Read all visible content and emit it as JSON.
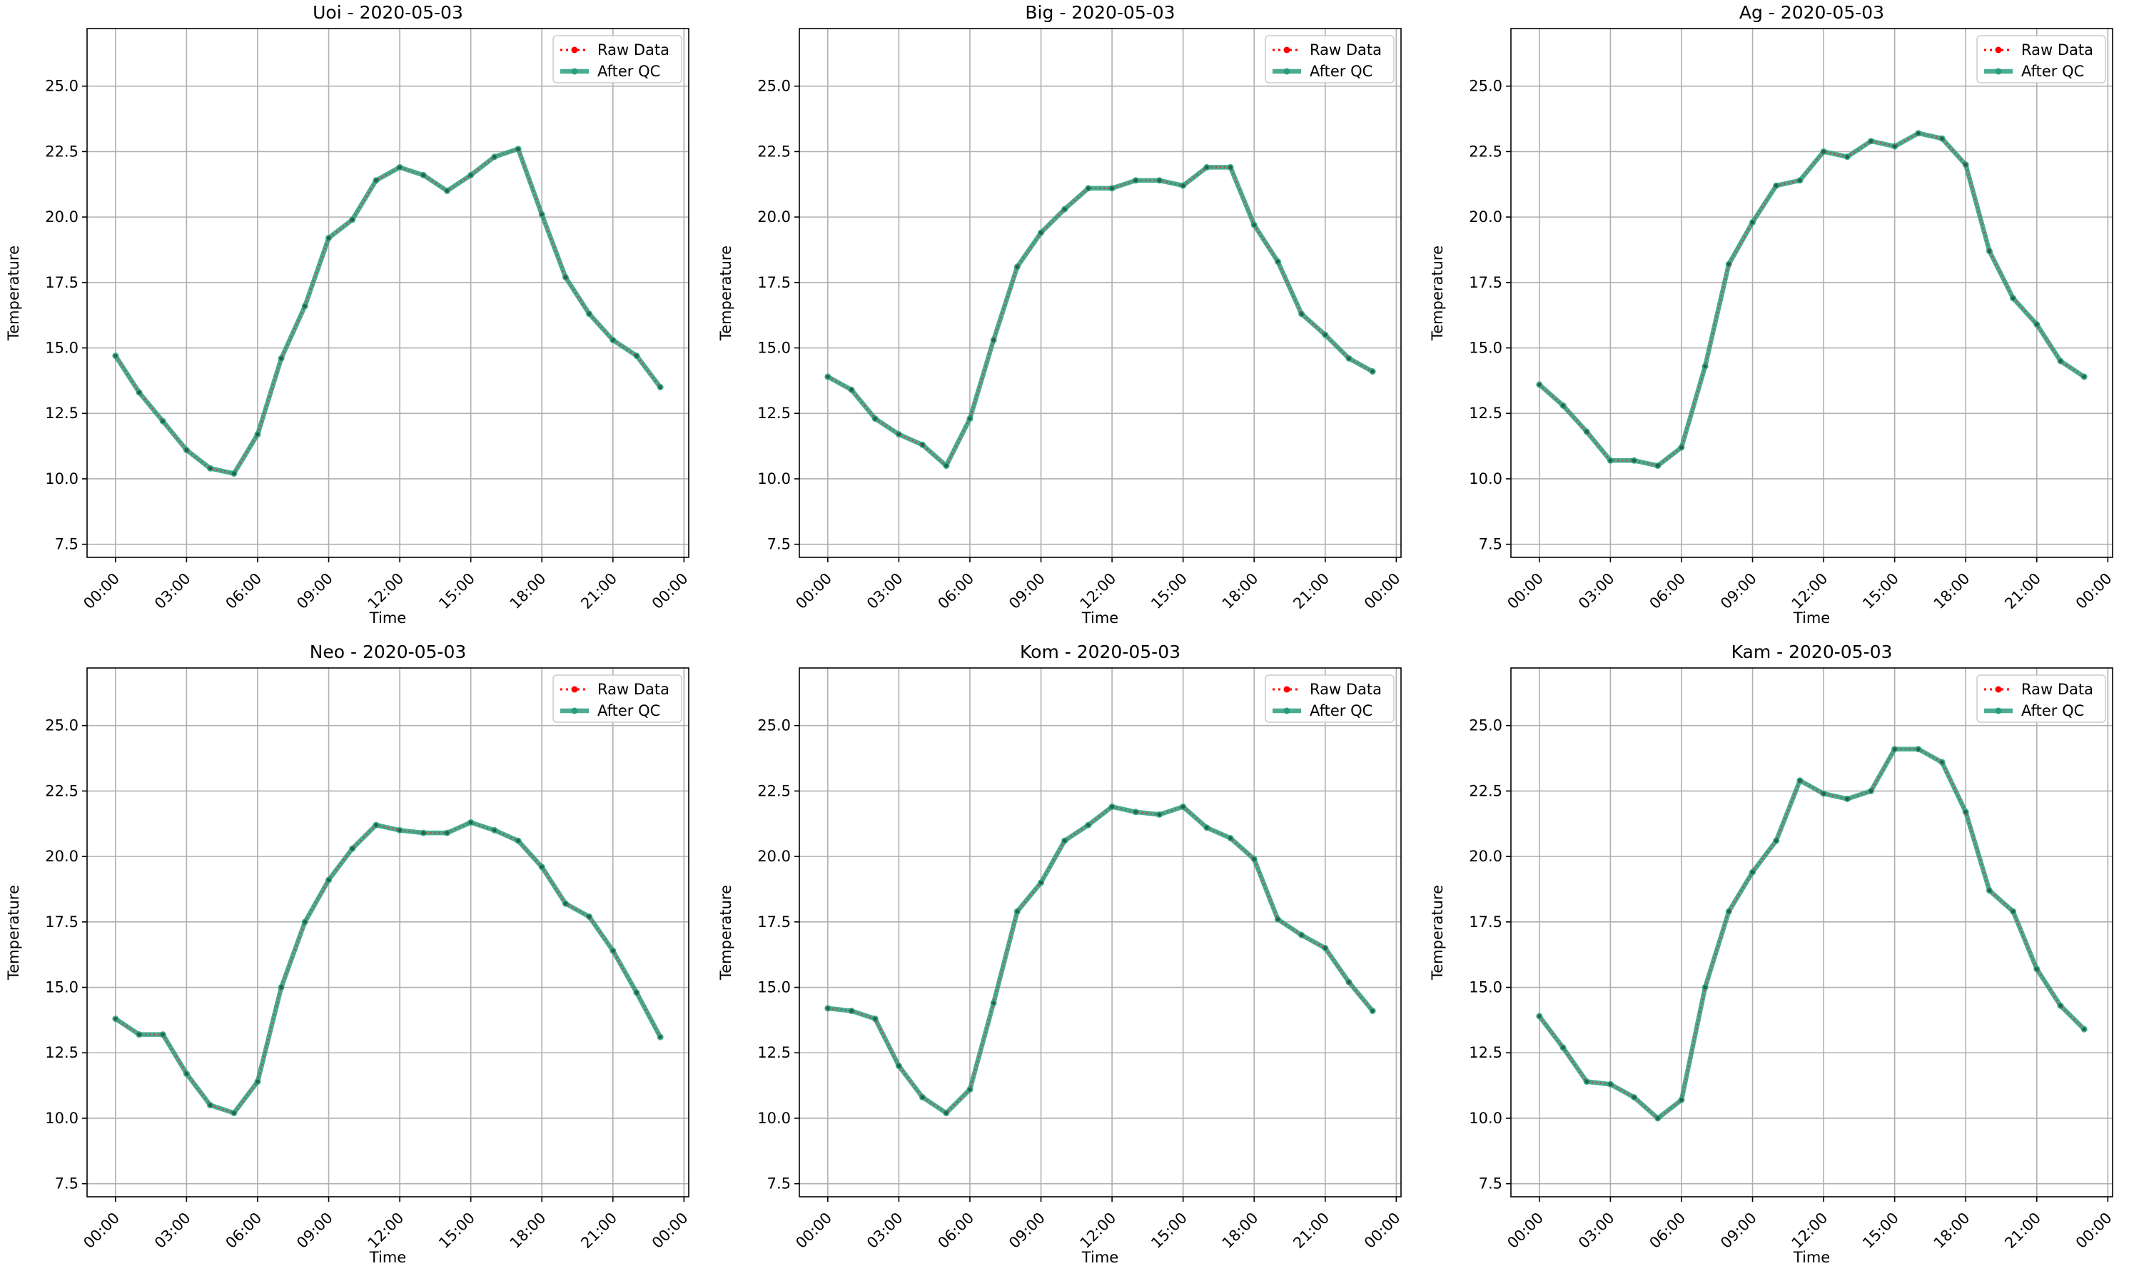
{
  "chart_data": [
    {
      "type": "line",
      "title": "Uoi - 2020-05-03",
      "xlabel": "Time",
      "ylabel": "Temperature",
      "xticks": [
        "00:00",
        "03:00",
        "06:00",
        "09:00",
        "12:00",
        "15:00",
        "18:00",
        "21:00",
        "00:00"
      ],
      "yticks": [
        "7.5",
        "10.0",
        "12.5",
        "15.0",
        "17.5",
        "20.0",
        "22.5",
        "25.0"
      ],
      "xlim_hours": [
        -1.2,
        24.2
      ],
      "ylim": [
        7.0,
        27.2
      ],
      "grid": true,
      "legend_position": "top-right",
      "x_hours": [
        0,
        1,
        2,
        3,
        4,
        5,
        6,
        7,
        8,
        9,
        10,
        11,
        12,
        13,
        14,
        15,
        16,
        17,
        18,
        19,
        20,
        21,
        22,
        23
      ],
      "series": [
        {
          "name": "Raw Data",
          "color": "#ff0000",
          "style": "dotted-markers",
          "values": [
            14.7,
            13.3,
            12.2,
            11.1,
            10.4,
            10.2,
            11.7,
            14.6,
            16.6,
            19.2,
            19.9,
            21.4,
            21.9,
            21.6,
            21.0,
            21.6,
            22.3,
            22.6,
            20.1,
            17.7,
            16.3,
            15.3,
            14.7,
            13.5
          ]
        },
        {
          "name": "After QC",
          "color": "#2a9d7c",
          "style": "solid-markers",
          "values": [
            14.7,
            13.3,
            12.2,
            11.1,
            10.4,
            10.2,
            11.7,
            14.6,
            16.6,
            19.2,
            19.9,
            21.4,
            21.9,
            21.6,
            21.0,
            21.6,
            22.3,
            22.6,
            20.1,
            17.7,
            16.3,
            15.3,
            14.7,
            13.5
          ]
        }
      ]
    },
    {
      "type": "line",
      "title": "Big - 2020-05-03",
      "xlabel": "Time",
      "ylabel": "Temperature",
      "xticks": [
        "00:00",
        "03:00",
        "06:00",
        "09:00",
        "12:00",
        "15:00",
        "18:00",
        "21:00",
        "00:00"
      ],
      "yticks": [
        "7.5",
        "10.0",
        "12.5",
        "15.0",
        "17.5",
        "20.0",
        "22.5",
        "25.0"
      ],
      "xlim_hours": [
        -1.2,
        24.2
      ],
      "ylim": [
        7.0,
        27.2
      ],
      "grid": true,
      "legend_position": "top-right",
      "x_hours": [
        0,
        1,
        2,
        3,
        4,
        5,
        6,
        7,
        8,
        9,
        10,
        11,
        12,
        13,
        14,
        15,
        16,
        17,
        18,
        19,
        20,
        21,
        22,
        23
      ],
      "series": [
        {
          "name": "Raw Data",
          "color": "#ff0000",
          "style": "dotted-markers",
          "values": [
            13.9,
            13.4,
            12.3,
            11.7,
            11.3,
            10.5,
            12.3,
            15.3,
            18.1,
            19.4,
            20.3,
            21.1,
            21.1,
            21.4,
            21.4,
            21.2,
            21.9,
            21.9,
            19.7,
            18.3,
            16.3,
            15.5,
            14.6,
            14.1
          ]
        },
        {
          "name": "After QC",
          "color": "#2a9d7c",
          "style": "solid-markers",
          "values": [
            13.9,
            13.4,
            12.3,
            11.7,
            11.3,
            10.5,
            12.3,
            15.3,
            18.1,
            19.4,
            20.3,
            21.1,
            21.1,
            21.4,
            21.4,
            21.2,
            21.9,
            21.9,
            19.7,
            18.3,
            16.3,
            15.5,
            14.6,
            14.1
          ]
        }
      ]
    },
    {
      "type": "line",
      "title": "Ag - 2020-05-03",
      "xlabel": "Time",
      "ylabel": "Temperature",
      "xticks": [
        "00:00",
        "03:00",
        "06:00",
        "09:00",
        "12:00",
        "15:00",
        "18:00",
        "21:00",
        "00:00"
      ],
      "yticks": [
        "7.5",
        "10.0",
        "12.5",
        "15.0",
        "17.5",
        "20.0",
        "22.5",
        "25.0"
      ],
      "xlim_hours": [
        -1.2,
        24.2
      ],
      "ylim": [
        7.0,
        27.2
      ],
      "grid": true,
      "legend_position": "top-right",
      "x_hours": [
        0,
        1,
        2,
        3,
        4,
        5,
        6,
        7,
        8,
        9,
        10,
        11,
        12,
        13,
        14,
        15,
        16,
        17,
        18,
        19,
        20,
        21,
        22,
        23
      ],
      "series": [
        {
          "name": "Raw Data",
          "color": "#ff0000",
          "style": "dotted-markers",
          "values": [
            13.6,
            12.8,
            11.8,
            10.7,
            10.7,
            10.5,
            11.2,
            14.3,
            18.2,
            19.8,
            21.2,
            21.4,
            22.5,
            22.3,
            22.9,
            22.7,
            23.2,
            23.0,
            22.0,
            18.7,
            16.9,
            15.9,
            14.5,
            13.9
          ]
        },
        {
          "name": "After QC",
          "color": "#2a9d7c",
          "style": "solid-markers",
          "values": [
            13.6,
            12.8,
            11.8,
            10.7,
            10.7,
            10.5,
            11.2,
            14.3,
            18.2,
            19.8,
            21.2,
            21.4,
            22.5,
            22.3,
            22.9,
            22.7,
            23.2,
            23.0,
            22.0,
            18.7,
            16.9,
            15.9,
            14.5,
            13.9
          ]
        }
      ]
    },
    {
      "type": "line",
      "title": "Neo - 2020-05-03",
      "xlabel": "Time",
      "ylabel": "Temperature",
      "xticks": [
        "00:00",
        "03:00",
        "06:00",
        "09:00",
        "12:00",
        "15:00",
        "18:00",
        "21:00",
        "00:00"
      ],
      "yticks": [
        "7.5",
        "10.0",
        "12.5",
        "15.0",
        "17.5",
        "20.0",
        "22.5",
        "25.0"
      ],
      "xlim_hours": [
        -1.2,
        24.2
      ],
      "ylim": [
        7.0,
        27.2
      ],
      "grid": true,
      "legend_position": "top-right",
      "x_hours": [
        0,
        1,
        2,
        3,
        4,
        5,
        6,
        7,
        8,
        9,
        10,
        11,
        12,
        13,
        14,
        15,
        16,
        17,
        18,
        19,
        20,
        21,
        22,
        23
      ],
      "series": [
        {
          "name": "Raw Data",
          "color": "#ff0000",
          "style": "dotted-markers",
          "values": [
            13.8,
            13.2,
            13.2,
            11.7,
            10.5,
            10.2,
            11.4,
            15.0,
            17.5,
            19.1,
            20.3,
            21.2,
            21.0,
            20.9,
            20.9,
            21.3,
            21.0,
            20.6,
            19.6,
            18.2,
            17.7,
            16.4,
            14.8,
            13.1
          ]
        },
        {
          "name": "After QC",
          "color": "#2a9d7c",
          "style": "solid-markers",
          "values": [
            13.8,
            13.2,
            13.2,
            11.7,
            10.5,
            10.2,
            11.4,
            15.0,
            17.5,
            19.1,
            20.3,
            21.2,
            21.0,
            20.9,
            20.9,
            21.3,
            21.0,
            20.6,
            19.6,
            18.2,
            17.7,
            16.4,
            14.8,
            13.1
          ]
        }
      ]
    },
    {
      "type": "line",
      "title": "Kom - 2020-05-03",
      "xlabel": "Time",
      "ylabel": "Temperature",
      "xticks": [
        "00:00",
        "03:00",
        "06:00",
        "09:00",
        "12:00",
        "15:00",
        "18:00",
        "21:00",
        "00:00"
      ],
      "yticks": [
        "7.5",
        "10.0",
        "12.5",
        "15.0",
        "17.5",
        "20.0",
        "22.5",
        "25.0"
      ],
      "xlim_hours": [
        -1.2,
        24.2
      ],
      "ylim": [
        7.0,
        27.2
      ],
      "grid": true,
      "legend_position": "top-right",
      "x_hours": [
        0,
        1,
        2,
        3,
        4,
        5,
        6,
        7,
        8,
        9,
        10,
        11,
        12,
        13,
        14,
        15,
        16,
        17,
        18,
        19,
        20,
        21,
        22,
        23
      ],
      "series": [
        {
          "name": "Raw Data",
          "color": "#ff0000",
          "style": "dotted-markers",
          "values": [
            14.2,
            14.1,
            13.8,
            12.0,
            10.8,
            10.2,
            11.1,
            14.4,
            17.9,
            19.0,
            20.6,
            21.2,
            21.9,
            21.7,
            21.6,
            21.9,
            21.1,
            20.7,
            19.9,
            17.6,
            17.0,
            16.5,
            15.2,
            14.1
          ]
        },
        {
          "name": "After QC",
          "color": "#2a9d7c",
          "style": "solid-markers",
          "values": [
            14.2,
            14.1,
            13.8,
            12.0,
            10.8,
            10.2,
            11.1,
            14.4,
            17.9,
            19.0,
            20.6,
            21.2,
            21.9,
            21.7,
            21.6,
            21.9,
            21.1,
            20.7,
            19.9,
            17.6,
            17.0,
            16.5,
            15.2,
            14.1
          ]
        }
      ]
    },
    {
      "type": "line",
      "title": "Kam - 2020-05-03",
      "xlabel": "Time",
      "ylabel": "Temperature",
      "xticks": [
        "00:00",
        "03:00",
        "06:00",
        "09:00",
        "12:00",
        "15:00",
        "18:00",
        "21:00",
        "00:00"
      ],
      "yticks": [
        "7.5",
        "10.0",
        "12.5",
        "15.0",
        "17.5",
        "20.0",
        "22.5",
        "25.0"
      ],
      "xlim_hours": [
        -1.2,
        24.2
      ],
      "ylim": [
        7.0,
        27.2
      ],
      "grid": true,
      "legend_position": "top-right",
      "x_hours": [
        0,
        1,
        2,
        3,
        4,
        5,
        6,
        7,
        8,
        9,
        10,
        11,
        12,
        13,
        14,
        15,
        16,
        17,
        18,
        19,
        20,
        21,
        22,
        23
      ],
      "series": [
        {
          "name": "Raw Data",
          "color": "#ff0000",
          "style": "dotted-markers",
          "values": [
            13.9,
            12.7,
            11.4,
            11.3,
            10.8,
            10.0,
            10.7,
            15.0,
            17.9,
            19.4,
            20.6,
            22.9,
            22.4,
            22.2,
            22.5,
            24.1,
            24.1,
            23.6,
            21.7,
            18.7,
            17.9,
            15.7,
            14.3,
            13.4
          ]
        },
        {
          "name": "After QC",
          "color": "#2a9d7c",
          "style": "solid-markers",
          "values": [
            13.9,
            12.7,
            11.4,
            11.3,
            10.8,
            10.0,
            10.7,
            15.0,
            17.9,
            19.4,
            20.6,
            22.9,
            22.4,
            22.2,
            22.5,
            24.1,
            24.1,
            23.6,
            21.7,
            18.7,
            17.9,
            15.7,
            14.3,
            13.4
          ]
        }
      ]
    }
  ]
}
